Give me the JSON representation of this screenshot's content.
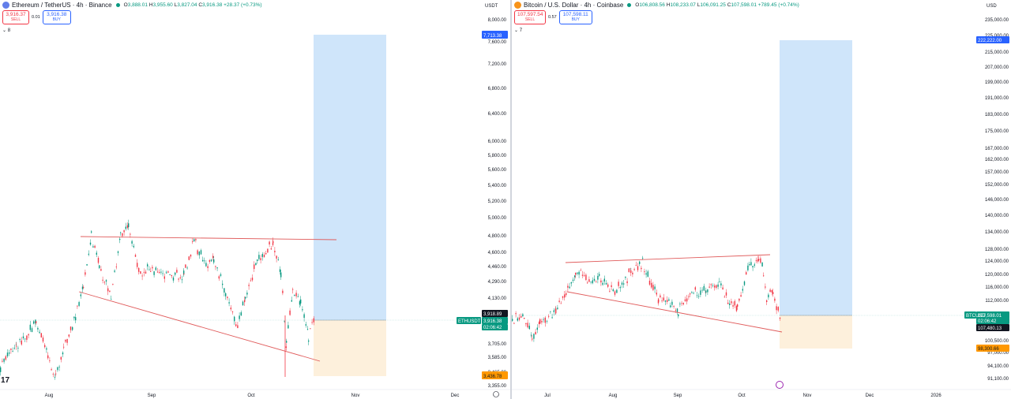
{
  "left": {
    "legend": {
      "title": "Ethereum / TetherUS · 4h · Binance",
      "open": "3,888.01",
      "high": "3,955.60",
      "low": "3,827.04",
      "close": "3,916.38",
      "change": "+28.37 (+0.73%)"
    },
    "trade": {
      "sell_price": "3,916.37",
      "sell_label": "SELL",
      "spread": "0.01",
      "buy_price": "3,916.38",
      "buy_label": "BUY"
    },
    "collapse_count": "8",
    "currency": "USDT",
    "price_axis": [
      "8,000.00",
      "7,600.00",
      "7,200.00",
      "6,800.00",
      "6,400.00",
      "6,000.00",
      "5,800.00",
      "5,600.00",
      "5,400.00",
      "5,200.00",
      "5,000.00",
      "4,800.00",
      "4,600.00",
      "4,460.00",
      "4,290.00",
      "4,130.00",
      "3,705.00",
      "3,585.00",
      "3,465.00",
      "3,355.00"
    ],
    "time_axis": [
      "Aug",
      "Sep",
      "Oct",
      "Nov",
      "Dec"
    ],
    "tags": {
      "target": "7,713.38",
      "entry": "3,918.89",
      "last": "3,916.38",
      "countdown": "02:06:42",
      "stop": "3,436.78",
      "symbol": "ETHUSDT"
    },
    "colors": {
      "target": "#2962ff",
      "stop": "#ff9800",
      "up": "#089981",
      "down": "#f23645"
    }
  },
  "right": {
    "legend": {
      "title": "Bitcoin / U.S. Dollar · 4h · Coinbase",
      "open": "106,808.56",
      "high": "108,233.07",
      "low": "106,091.25",
      "close": "107,598.01",
      "change": "+789.45 (+0.74%)"
    },
    "trade": {
      "sell_price": "107,597.54",
      "sell_label": "SELL",
      "spread": "0.57",
      "buy_price": "107,598.11",
      "buy_label": "BUY"
    },
    "collapse_count": "7",
    "currency": "USD",
    "price_axis": [
      "235,000.00",
      "225,000.00",
      "215,000.00",
      "207,000.00",
      "199,000.00",
      "191,000.00",
      "183,000.00",
      "175,000.00",
      "167,000.00",
      "162,000.00",
      "157,000.00",
      "152,000.00",
      "146,000.00",
      "140,000.00",
      "134,000.00",
      "128,000.00",
      "124,000.00",
      "120,000.00",
      "116,000.00",
      "112,000.00",
      "100,500.00",
      "97,000.00",
      "94,100.00",
      "91,100.00"
    ],
    "time_axis": [
      "Jul",
      "Aug",
      "Sep",
      "Oct",
      "Nov",
      "Dec",
      "2026"
    ],
    "tags": {
      "target": "222,222.00",
      "last": "107,598.01",
      "countdown": "02:06:42",
      "entry": "107,480.13",
      "stop": "98,300.66",
      "symbol": "BTCUSD"
    }
  }
}
